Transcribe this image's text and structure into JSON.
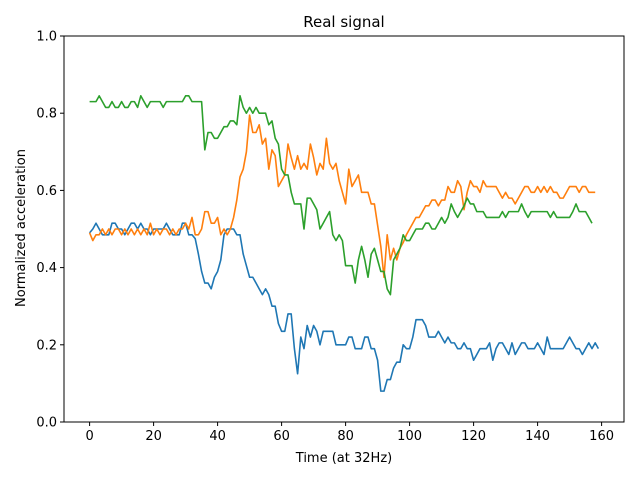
{
  "chart_data": {
    "type": "line",
    "title": "Real signal",
    "xlabel": "Time (at 32Hz)",
    "ylabel": "Normalized acceleration",
    "xlim": [
      -8,
      167
    ],
    "ylim": [
      0.0,
      1.0
    ],
    "xticks": [
      0,
      20,
      40,
      60,
      80,
      100,
      120,
      140,
      160
    ],
    "yticks": [
      0.0,
      0.2,
      0.4,
      0.6,
      0.8,
      1.0
    ],
    "ytick_labels": [
      "0.0",
      "0.2",
      "0.4",
      "0.6",
      "0.8",
      "1.0"
    ],
    "grid": false,
    "legend": "none",
    "x_start": 0,
    "x_step": 1,
    "series": [
      {
        "color": "#1f77b4",
        "values": [
          0.49,
          0.5,
          0.515,
          0.5,
          0.485,
          0.485,
          0.485,
          0.515,
          0.515,
          0.5,
          0.5,
          0.485,
          0.5,
          0.515,
          0.515,
          0.5,
          0.515,
          0.5,
          0.5,
          0.485,
          0.5,
          0.5,
          0.5,
          0.5,
          0.515,
          0.5,
          0.485,
          0.485,
          0.485,
          0.515,
          0.515,
          0.485,
          0.485,
          0.475,
          0.435,
          0.39,
          0.36,
          0.36,
          0.345,
          0.375,
          0.39,
          0.42,
          0.485,
          0.5,
          0.5,
          0.5,
          0.485,
          0.485,
          0.435,
          0.405,
          0.375,
          0.375,
          0.36,
          0.345,
          0.33,
          0.345,
          0.33,
          0.3,
          0.3,
          0.255,
          0.235,
          0.235,
          0.28,
          0.28,
          0.19,
          0.125,
          0.22,
          0.19,
          0.25,
          0.22,
          0.25,
          0.235,
          0.2,
          0.235,
          0.235,
          0.235,
          0.235,
          0.2,
          0.2,
          0.2,
          0.2,
          0.22,
          0.22,
          0.19,
          0.19,
          0.19,
          0.22,
          0.22,
          0.19,
          0.19,
          0.16,
          0.08,
          0.08,
          0.11,
          0.11,
          0.14,
          0.155,
          0.155,
          0.2,
          0.19,
          0.19,
          0.22,
          0.265,
          0.265,
          0.265,
          0.25,
          0.22,
          0.22,
          0.22,
          0.235,
          0.22,
          0.205,
          0.22,
          0.205,
          0.205,
          0.19,
          0.19,
          0.205,
          0.19,
          0.19,
          0.16,
          0.175,
          0.19,
          0.19,
          0.19,
          0.205,
          0.16,
          0.19,
          0.205,
          0.205,
          0.19,
          0.175,
          0.205,
          0.175,
          0.19,
          0.205,
          0.205,
          0.19,
          0.19,
          0.19,
          0.205,
          0.19,
          0.175,
          0.22,
          0.19,
          0.19,
          0.19,
          0.19,
          0.19,
          0.205,
          0.22,
          0.205,
          0.19,
          0.19,
          0.175,
          0.19,
          0.205,
          0.19,
          0.205,
          0.19
        ]
      },
      {
        "color": "#ff7f0e",
        "values": [
          0.49,
          0.47,
          0.485,
          0.485,
          0.5,
          0.485,
          0.5,
          0.485,
          0.5,
          0.5,
          0.485,
          0.5,
          0.485,
          0.5,
          0.485,
          0.5,
          0.485,
          0.5,
          0.485,
          0.515,
          0.485,
          0.5,
          0.485,
          0.5,
          0.5,
          0.485,
          0.5,
          0.485,
          0.5,
          0.5,
          0.515,
          0.5,
          0.53,
          0.485,
          0.485,
          0.5,
          0.545,
          0.545,
          0.515,
          0.515,
          0.53,
          0.485,
          0.5,
          0.485,
          0.5,
          0.53,
          0.575,
          0.635,
          0.655,
          0.7,
          0.795,
          0.75,
          0.75,
          0.77,
          0.72,
          0.735,
          0.655,
          0.705,
          0.69,
          0.61,
          0.625,
          0.64,
          0.72,
          0.685,
          0.655,
          0.69,
          0.655,
          0.67,
          0.655,
          0.72,
          0.685,
          0.64,
          0.67,
          0.655,
          0.735,
          0.67,
          0.655,
          0.67,
          0.625,
          0.595,
          0.565,
          0.655,
          0.61,
          0.625,
          0.64,
          0.595,
          0.595,
          0.595,
          0.565,
          0.565,
          0.51,
          0.455,
          0.375,
          0.485,
          0.42,
          0.45,
          0.42,
          0.45,
          0.465,
          0.485,
          0.5,
          0.515,
          0.53,
          0.53,
          0.545,
          0.56,
          0.56,
          0.575,
          0.575,
          0.56,
          0.575,
          0.575,
          0.61,
          0.595,
          0.595,
          0.625,
          0.61,
          0.55,
          0.595,
          0.625,
          0.61,
          0.61,
          0.595,
          0.625,
          0.61,
          0.61,
          0.61,
          0.61,
          0.595,
          0.58,
          0.595,
          0.58,
          0.58,
          0.565,
          0.58,
          0.595,
          0.61,
          0.61,
          0.595,
          0.595,
          0.61,
          0.595,
          0.61,
          0.595,
          0.61,
          0.595,
          0.595,
          0.58,
          0.58,
          0.595,
          0.61,
          0.61,
          0.61,
          0.595,
          0.61,
          0.61,
          0.595,
          0.595,
          0.595
        ]
      },
      {
        "color": "#2ca02c",
        "values": [
          0.83,
          0.83,
          0.83,
          0.845,
          0.83,
          0.815,
          0.815,
          0.83,
          0.815,
          0.815,
          0.83,
          0.815,
          0.815,
          0.83,
          0.83,
          0.815,
          0.845,
          0.83,
          0.815,
          0.83,
          0.83,
          0.83,
          0.83,
          0.815,
          0.83,
          0.83,
          0.83,
          0.83,
          0.83,
          0.83,
          0.845,
          0.845,
          0.83,
          0.83,
          0.83,
          0.83,
          0.705,
          0.75,
          0.75,
          0.735,
          0.735,
          0.75,
          0.765,
          0.765,
          0.78,
          0.78,
          0.77,
          0.845,
          0.815,
          0.8,
          0.815,
          0.8,
          0.815,
          0.8,
          0.8,
          0.8,
          0.77,
          0.78,
          0.735,
          0.72,
          0.655,
          0.64,
          0.64,
          0.595,
          0.565,
          0.565,
          0.565,
          0.5,
          0.58,
          0.58,
          0.565,
          0.55,
          0.5,
          0.515,
          0.53,
          0.545,
          0.485,
          0.47,
          0.485,
          0.47,
          0.405,
          0.405,
          0.405,
          0.36,
          0.42,
          0.455,
          0.42,
          0.375,
          0.435,
          0.45,
          0.42,
          0.39,
          0.39,
          0.345,
          0.33,
          0.42,
          0.435,
          0.45,
          0.485,
          0.47,
          0.47,
          0.485,
          0.5,
          0.5,
          0.5,
          0.515,
          0.515,
          0.5,
          0.5,
          0.515,
          0.53,
          0.515,
          0.53,
          0.565,
          0.545,
          0.53,
          0.545,
          0.56,
          0.58,
          0.565,
          0.565,
          0.545,
          0.545,
          0.545,
          0.53,
          0.53,
          0.53,
          0.53,
          0.53,
          0.545,
          0.53,
          0.545,
          0.545,
          0.545,
          0.545,
          0.565,
          0.545,
          0.53,
          0.545,
          0.545,
          0.545,
          0.545,
          0.545,
          0.545,
          0.53,
          0.545,
          0.53,
          0.53,
          0.53,
          0.53,
          0.53,
          0.545,
          0.565,
          0.545,
          0.545,
          0.545,
          0.53,
          0.515
        ]
      }
    ]
  }
}
